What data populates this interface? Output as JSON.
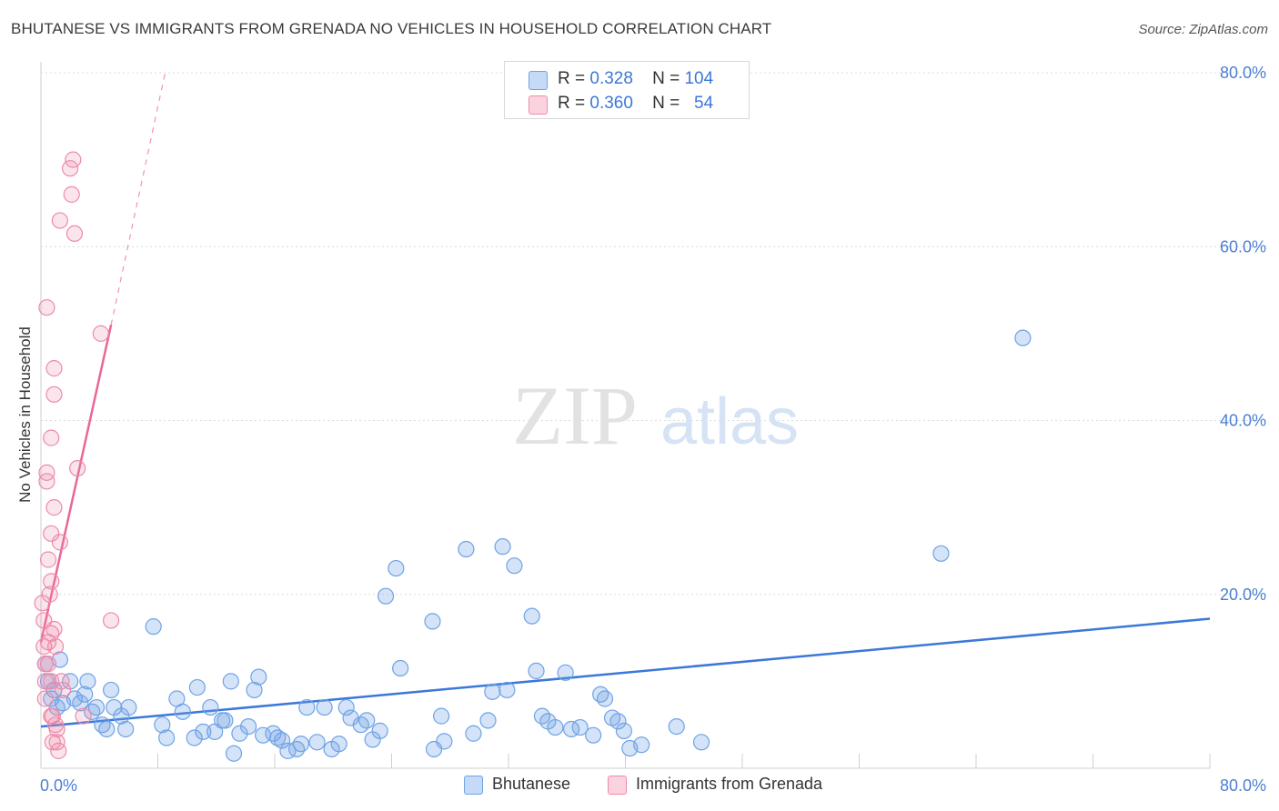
{
  "header": {
    "title": "BHUTANESE VS IMMIGRANTS FROM GRENADA NO VEHICLES IN HOUSEHOLD CORRELATION CHART",
    "source": "Source: ZipAtlas.com"
  },
  "watermark": {
    "zip": "ZIP",
    "atlas": "atlas"
  },
  "legend": {
    "rows": [
      {
        "r_label": "R =",
        "r_value": "0.328",
        "n_label": "N =",
        "n_value": "104",
        "color": "#a9c8f0"
      },
      {
        "r_label": "R =",
        "r_value": "0.360",
        "n_label": "N =",
        "n_value": "54",
        "color": "#f6b8c9"
      }
    ]
  },
  "bottom_legend": {
    "items": [
      "Bhutanese",
      "Immigrants from Grenada"
    ]
  },
  "colors": {
    "blue": "#6fa3e6",
    "blue_line": "#3b78d8",
    "pink": "#ee8aa8",
    "pink_line": "#e8679a",
    "tick_text": "#4a7fd4"
  },
  "chart_data": {
    "type": "scatter",
    "title": "BHUTANESE VS IMMIGRANTS FROM GRENADA NO VEHICLES IN HOUSEHOLD CORRELATION CHART",
    "xlabel": "",
    "ylabel": "No Vehicles in Household",
    "xlim": [
      0,
      80
    ],
    "ylim": [
      0,
      80
    ],
    "x_tick_labels": [
      "0.0%",
      "80.0%"
    ],
    "y_tick_labels": [
      "20.0%",
      "40.0%",
      "60.0%",
      "80.0%"
    ],
    "y_ticks": [
      20,
      40,
      60,
      80
    ],
    "grid": true,
    "series": [
      {
        "name": "Bhutanese",
        "color": "#6fa3e6",
        "trend": {
          "x": [
            0,
            80
          ],
          "y": [
            4.8,
            17.2
          ]
        },
        "points": [
          [
            0.3,
            12
          ],
          [
            0.5,
            10
          ],
          [
            0.7,
            8
          ],
          [
            0.9,
            9
          ],
          [
            1.1,
            7
          ],
          [
            1.3,
            12.5
          ],
          [
            1.5,
            7.5
          ],
          [
            2,
            10
          ],
          [
            2.3,
            8
          ],
          [
            2.7,
            7.5
          ],
          [
            3,
            8.5
          ],
          [
            3.2,
            10
          ],
          [
            3.5,
            6.5
          ],
          [
            3.8,
            7
          ],
          [
            4.2,
            5
          ],
          [
            4.5,
            4.5
          ],
          [
            4.8,
            9
          ],
          [
            5,
            7
          ],
          [
            5.5,
            6
          ],
          [
            5.8,
            4.5
          ],
          [
            6,
            7
          ],
          [
            7.7,
            16.3
          ],
          [
            8.3,
            5
          ],
          [
            8.6,
            3.5
          ],
          [
            9.3,
            8
          ],
          [
            9.7,
            6.5
          ],
          [
            10.5,
            3.5
          ],
          [
            10.7,
            9.3
          ],
          [
            11.1,
            4.2
          ],
          [
            11.6,
            7
          ],
          [
            11.9,
            4.2
          ],
          [
            12.4,
            5.5
          ],
          [
            12.6,
            5.5
          ],
          [
            13,
            10
          ],
          [
            13.2,
            1.7
          ],
          [
            13.6,
            4
          ],
          [
            14.2,
            4.8
          ],
          [
            14.6,
            9
          ],
          [
            14.9,
            10.5
          ],
          [
            15.2,
            3.8
          ],
          [
            15.9,
            4
          ],
          [
            16.2,
            3.5
          ],
          [
            16.5,
            3.2
          ],
          [
            16.9,
            2
          ],
          [
            17.5,
            2.2
          ],
          [
            17.8,
            2.8
          ],
          [
            18.2,
            7
          ],
          [
            18.9,
            3
          ],
          [
            19.4,
            7
          ],
          [
            19.9,
            2.2
          ],
          [
            20.4,
            2.8
          ],
          [
            20.9,
            7
          ],
          [
            21.2,
            5.8
          ],
          [
            21.9,
            5
          ],
          [
            22.3,
            5.5
          ],
          [
            22.7,
            3.3
          ],
          [
            23.2,
            4.3
          ],
          [
            23.6,
            19.8
          ],
          [
            24.3,
            23
          ],
          [
            24.6,
            11.5
          ],
          [
            26.8,
            16.9
          ],
          [
            26.9,
            2.2
          ],
          [
            27.4,
            6
          ],
          [
            27.6,
            3.1
          ],
          [
            29.1,
            25.2
          ],
          [
            29.6,
            4
          ],
          [
            30.6,
            5.5
          ],
          [
            30.9,
            8.8
          ],
          [
            31.6,
            25.5
          ],
          [
            31.9,
            9
          ],
          [
            32.4,
            23.3
          ],
          [
            33.6,
            17.5
          ],
          [
            33.9,
            11.2
          ],
          [
            34.3,
            6
          ],
          [
            34.7,
            5.4
          ],
          [
            35.2,
            4.7
          ],
          [
            35.9,
            11
          ],
          [
            36.3,
            4.5
          ],
          [
            36.9,
            4.7
          ],
          [
            37.8,
            3.8
          ],
          [
            38.3,
            8.5
          ],
          [
            38.6,
            8
          ],
          [
            39.1,
            5.8
          ],
          [
            39.5,
            5.4
          ],
          [
            39.9,
            4.3
          ],
          [
            40.3,
            2.3
          ],
          [
            41.1,
            2.7
          ],
          [
            43.5,
            4.8
          ],
          [
            45.2,
            3
          ],
          [
            61.6,
            24.7
          ],
          [
            67.2,
            49.5
          ]
        ]
      },
      {
        "name": "Immigrants from Grenada",
        "color": "#ee8aa8",
        "trend": {
          "x": [
            0,
            4.8
          ],
          "y": [
            14.5,
            51
          ]
        },
        "trend_dashed": {
          "x": [
            4.8,
            8.5
          ],
          "y": [
            51,
            80
          ]
        },
        "points": [
          [
            0.1,
            19
          ],
          [
            0.2,
            17
          ],
          [
            0.2,
            14
          ],
          [
            0.3,
            12
          ],
          [
            0.3,
            10
          ],
          [
            0.3,
            8
          ],
          [
            0.4,
            53
          ],
          [
            0.4,
            34
          ],
          [
            0.4,
            33
          ],
          [
            0.5,
            24
          ],
          [
            0.5,
            14.5
          ],
          [
            0.5,
            12
          ],
          [
            0.6,
            20
          ],
          [
            0.7,
            38
          ],
          [
            0.7,
            27
          ],
          [
            0.7,
            21.5
          ],
          [
            0.7,
            15.5
          ],
          [
            0.7,
            10
          ],
          [
            0.7,
            6
          ],
          [
            0.8,
            6
          ],
          [
            0.8,
            3
          ],
          [
            0.9,
            46
          ],
          [
            0.9,
            43
          ],
          [
            0.9,
            30
          ],
          [
            0.9,
            16
          ],
          [
            1,
            14
          ],
          [
            1,
            5
          ],
          [
            1.1,
            4.5
          ],
          [
            1.1,
            3
          ],
          [
            1.2,
            2
          ],
          [
            1.3,
            63
          ],
          [
            1.3,
            26
          ],
          [
            1.4,
            10
          ],
          [
            1.5,
            9
          ],
          [
            2,
            69
          ],
          [
            2.1,
            66
          ],
          [
            2.2,
            70
          ],
          [
            2.3,
            61.5
          ],
          [
            2.5,
            34.5
          ],
          [
            2.9,
            6
          ],
          [
            4.1,
            50
          ],
          [
            4.8,
            17
          ]
        ]
      }
    ]
  }
}
